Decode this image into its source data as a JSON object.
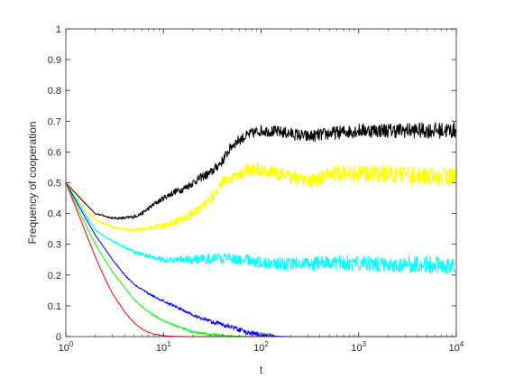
{
  "chart_data": {
    "type": "line",
    "title": "",
    "xlabel": "t",
    "ylabel": "Frequency of cooperation",
    "xscale": "log",
    "xlim": [
      1,
      10000
    ],
    "ylim": [
      0,
      1
    ],
    "x_ticks": [
      {
        "base": "10",
        "exp": "0",
        "value": 1
      },
      {
        "base": "10",
        "exp": "1",
        "value": 10
      },
      {
        "base": "10",
        "exp": "2",
        "value": 100
      },
      {
        "base": "10",
        "exp": "3",
        "value": 1000
      },
      {
        "base": "10",
        "exp": "4",
        "value": 10000
      }
    ],
    "y_ticks": [
      "0",
      "0.1",
      "0.2",
      "0.3",
      "0.4",
      "0.5",
      "0.6",
      "0.7",
      "0.8",
      "0.9",
      "1"
    ],
    "grid": false,
    "legend": "none",
    "series": [
      {
        "color": "#000000",
        "noise": 0.018,
        "x": [
          1,
          1.5,
          2,
          3,
          4,
          5,
          6,
          8,
          10,
          13,
          16,
          20,
          25,
          30,
          40,
          50,
          60,
          80,
          100,
          150,
          200,
          300,
          500,
          1000,
          2000,
          5000,
          10000
        ],
        "y": [
          0.5,
          0.44,
          0.4,
          0.385,
          0.385,
          0.39,
          0.4,
          0.43,
          0.45,
          0.47,
          0.48,
          0.5,
          0.52,
          0.53,
          0.57,
          0.62,
          0.64,
          0.66,
          0.67,
          0.665,
          0.66,
          0.65,
          0.66,
          0.67,
          0.67,
          0.67,
          0.67
        ]
      },
      {
        "color": "#ffff00",
        "noise": 0.022,
        "x": [
          1,
          1.5,
          2,
          3,
          4,
          5,
          7,
          10,
          15,
          20,
          30,
          40,
          50,
          70,
          100,
          200,
          300,
          500,
          1000,
          2000,
          5000,
          10000
        ],
        "y": [
          0.5,
          0.42,
          0.38,
          0.355,
          0.348,
          0.346,
          0.35,
          0.36,
          0.38,
          0.4,
          0.45,
          0.5,
          0.52,
          0.54,
          0.54,
          0.52,
          0.5,
          0.53,
          0.53,
          0.53,
          0.52,
          0.52
        ]
      },
      {
        "color": "#00ffff",
        "noise": 0.02,
        "x": [
          1,
          1.5,
          2,
          3,
          4,
          5,
          7,
          10,
          20,
          50,
          100,
          200,
          500,
          1000,
          2000,
          5000,
          10000
        ],
        "y": [
          0.5,
          0.41,
          0.345,
          0.31,
          0.29,
          0.275,
          0.26,
          0.25,
          0.25,
          0.255,
          0.24,
          0.235,
          0.24,
          0.24,
          0.235,
          0.235,
          0.23
        ]
      },
      {
        "color": "#0000ff",
        "noise": 0.008,
        "x": [
          1,
          1.5,
          2,
          3,
          4,
          5,
          7,
          10,
          15,
          20,
          30,
          50,
          70,
          100,
          150,
          200,
          10000
        ],
        "y": [
          0.5,
          0.4,
          0.33,
          0.25,
          0.2,
          0.17,
          0.14,
          0.115,
          0.09,
          0.07,
          0.05,
          0.03,
          0.015,
          0.005,
          0.001,
          0,
          0
        ]
      },
      {
        "color": "#00ff00",
        "noise": 0.005,
        "x": [
          1,
          1.5,
          2,
          3,
          4,
          5,
          7,
          10,
          15,
          20,
          30,
          50,
          70,
          80,
          10000
        ],
        "y": [
          0.5,
          0.38,
          0.3,
          0.21,
          0.16,
          0.12,
          0.08,
          0.05,
          0.03,
          0.015,
          0.006,
          0.002,
          0.0005,
          0,
          0
        ]
      },
      {
        "color": "#ff0000",
        "noise": 0.0,
        "x": [
          1,
          1.5,
          2,
          2.5,
          3,
          4,
          5,
          6,
          7,
          8,
          10,
          12,
          15,
          18,
          20,
          10000
        ],
        "y": [
          0.5,
          0.36,
          0.26,
          0.19,
          0.14,
          0.08,
          0.045,
          0.025,
          0.014,
          0.008,
          0.003,
          0.001,
          0.0003,
          0,
          0,
          0
        ]
      }
    ]
  }
}
